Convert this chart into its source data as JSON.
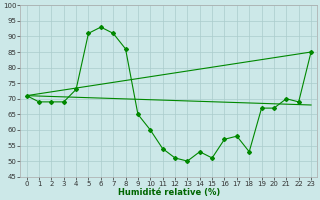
{
  "xlabel": "Humidité relative (%)",
  "background_color": "#cce8e8",
  "grid_color": "#aacccc",
  "line_color": "#008800",
  "xlim": [
    -0.5,
    23.5
  ],
  "ylim": [
    45,
    100
  ],
  "yticks": [
    45,
    50,
    55,
    60,
    65,
    70,
    75,
    80,
    85,
    90,
    95,
    100
  ],
  "xticks": [
    0,
    1,
    2,
    3,
    4,
    5,
    6,
    7,
    8,
    9,
    10,
    11,
    12,
    13,
    14,
    15,
    16,
    17,
    18,
    19,
    20,
    21,
    22,
    23
  ],
  "line1": {
    "x": [
      0,
      1,
      2,
      3,
      4,
      5,
      6,
      7,
      8,
      9,
      10,
      11,
      12,
      13,
      14,
      15,
      16,
      17,
      18,
      19,
      20,
      21,
      22,
      23
    ],
    "y": [
      71,
      69,
      69,
      69,
      73,
      91,
      93,
      91,
      86,
      65,
      60,
      54,
      51,
      50,
      53,
      51,
      57,
      58,
      53,
      67,
      67,
      70,
      69,
      85
    ]
  },
  "line2": {
    "x": [
      0,
      23
    ],
    "y": [
      71,
      85
    ]
  },
  "line3": {
    "x": [
      0,
      23
    ],
    "y": [
      71,
      68
    ]
  },
  "xlabel_color": "#006600",
  "xlabel_fontsize": 6.0,
  "tick_fontsize": 5.0
}
